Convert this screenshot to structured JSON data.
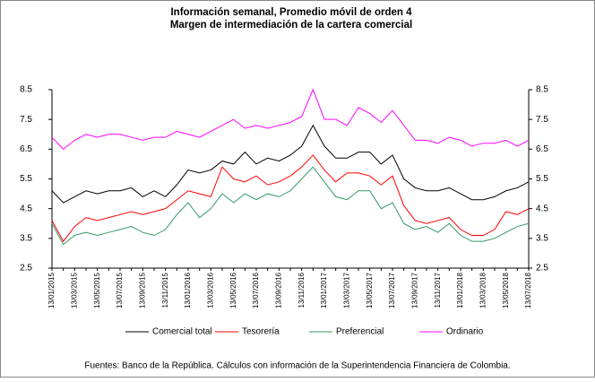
{
  "chart_data": {
    "type": "line",
    "title": "Información semanal, Promedio móvil de orden 4",
    "subtitle": "Margen de intermediación de la cartera comercial",
    "categories": [
      "13/01/2015",
      null,
      "13/03/2015",
      null,
      "13/05/2015",
      null,
      "13/07/2015",
      null,
      "13/09/2015",
      null,
      "13/11/2015",
      null,
      "13/01/2016",
      null,
      "13/03/2016",
      null,
      "13/05/2016",
      null,
      "13/07/2016",
      null,
      "13/09/2016",
      null,
      "13/11/2016",
      null,
      "13/01/2017",
      null,
      "13/03/2017",
      null,
      "13/05/2017",
      null,
      "13/07/2017",
      null,
      "13/09/2017",
      null,
      "13/11/2017",
      null,
      "13/01/2018",
      null,
      "13/03/2018",
      null,
      "13/05/2018",
      null,
      "13/07/2018"
    ],
    "series": [
      {
        "name": "Comercial total",
        "color": "#000000",
        "values": [
          5.1,
          4.7,
          4.9,
          5.1,
          5.0,
          5.1,
          5.1,
          5.2,
          4.9,
          5.1,
          4.9,
          5.3,
          5.8,
          5.7,
          5.8,
          6.1,
          6.0,
          6.4,
          6.0,
          6.2,
          6.1,
          6.3,
          6.6,
          7.3,
          6.6,
          6.2,
          6.2,
          6.4,
          6.4,
          6.0,
          6.3,
          5.5,
          5.2,
          5.1,
          5.1,
          5.2,
          5.0,
          4.8,
          4.8,
          4.9,
          5.1,
          5.2,
          5.4
        ]
      },
      {
        "name": "Tesorería",
        "color": "#ff0000",
        "values": [
          4.1,
          3.4,
          3.9,
          4.2,
          4.1,
          4.2,
          4.3,
          4.4,
          4.3,
          4.4,
          4.5,
          4.8,
          5.1,
          5.0,
          4.9,
          5.9,
          5.5,
          5.4,
          5.6,
          5.3,
          5.4,
          5.6,
          5.9,
          6.3,
          5.8,
          5.4,
          5.7,
          5.7,
          5.6,
          5.3,
          5.6,
          4.6,
          4.1,
          4.0,
          4.1,
          4.2,
          3.8,
          3.6,
          3.6,
          3.8,
          4.4,
          4.3,
          4.5
        ]
      },
      {
        "name": "Preferencial",
        "color": "#339966",
        "values": [
          4.0,
          3.3,
          3.6,
          3.7,
          3.6,
          3.7,
          3.8,
          3.9,
          3.7,
          3.6,
          3.8,
          4.3,
          4.7,
          4.2,
          4.5,
          5.0,
          4.7,
          5.0,
          4.8,
          5.0,
          4.9,
          5.1,
          5.5,
          5.9,
          5.4,
          4.9,
          4.8,
          5.1,
          5.1,
          4.5,
          4.7,
          4.0,
          3.8,
          3.9,
          3.7,
          4.0,
          3.6,
          3.4,
          3.4,
          3.5,
          3.7,
          3.9,
          4.0
        ]
      },
      {
        "name": "Ordinario",
        "color": "#ff00ff",
        "values": [
          6.9,
          6.5,
          6.8,
          7.0,
          6.9,
          7.0,
          7.0,
          6.9,
          6.8,
          6.9,
          6.9,
          7.1,
          7.0,
          6.9,
          7.1,
          7.3,
          7.5,
          7.2,
          7.3,
          7.2,
          7.3,
          7.4,
          7.6,
          8.5,
          7.5,
          7.5,
          7.3,
          7.9,
          7.7,
          7.4,
          7.8,
          7.3,
          6.8,
          6.8,
          6.7,
          6.9,
          6.8,
          6.6,
          6.7,
          6.7,
          6.8,
          6.6,
          6.8
        ]
      }
    ],
    "ylim": [
      2.5,
      8.5
    ],
    "yticks": [
      2.5,
      3.5,
      4.5,
      5.5,
      6.5,
      7.5,
      8.5
    ],
    "y2lim": [
      2.5,
      8.5
    ],
    "y2ticks": [
      2.5,
      3.5,
      4.5,
      5.5,
      6.5,
      7.5,
      8.5
    ],
    "legend": "bottom",
    "source": "Fuentes: Banco de la República. Cálculos con información de la Superintendencia Financiera de Colombia."
  }
}
